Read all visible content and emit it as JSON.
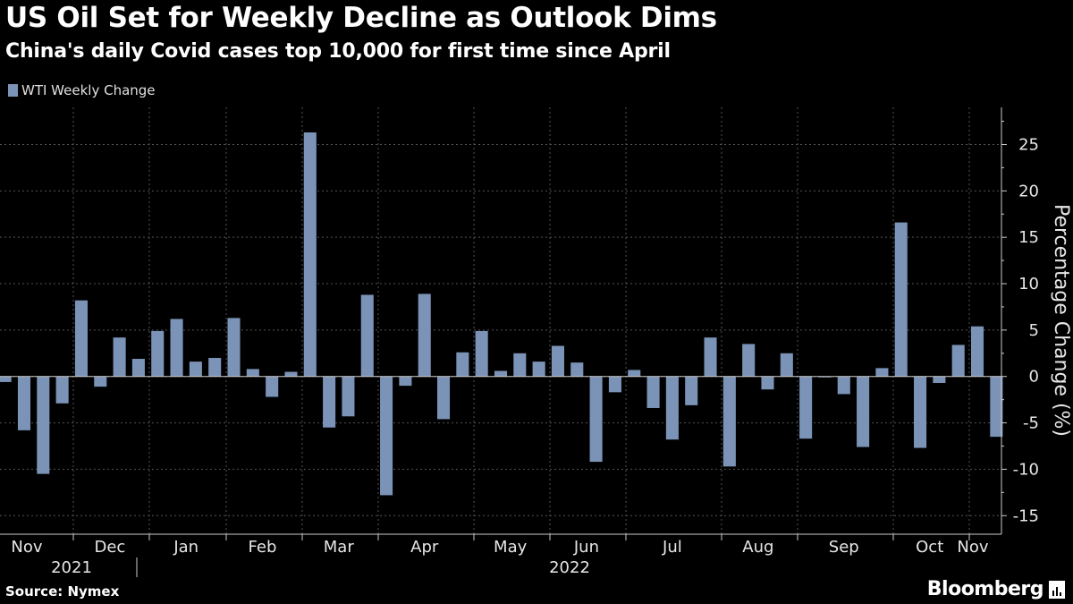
{
  "header": {
    "title": "US Oil Set for Weekly Decline as Outlook Dims",
    "subtitle": "China's daily Covid cases top 10,000 for first time since April"
  },
  "footer": {
    "source": "Source: Nymex",
    "brand": "Bloomberg"
  },
  "colors": {
    "bar": "#7b93b7",
    "grid": "#555555",
    "axis": "#cccccc"
  },
  "chart_data": {
    "type": "bar",
    "title": "US Oil Set for Weekly Decline as Outlook Dims",
    "subtitle": "China's daily Covid cases top 10,000 for first time since April",
    "ylabel": "Percentage Change (%)",
    "ylim": [
      -17,
      29
    ],
    "yticks": [
      -15,
      -10,
      -5,
      0,
      5,
      10,
      15,
      20,
      25
    ],
    "ytick_labels": [
      "-15",
      "-10",
      "-5",
      "0",
      "5",
      "10",
      "15",
      "20",
      "25"
    ],
    "legend": "WTI Weekly Change",
    "legend_position": "top-left",
    "month_labels": [
      "Nov",
      "Dec",
      "Jan",
      "Feb",
      "Mar",
      "Apr",
      "May",
      "Jun",
      "Jul",
      "Aug",
      "Sep",
      "Oct",
      "Nov"
    ],
    "month_start_weeks": [
      0,
      4,
      8,
      12,
      16,
      20,
      25,
      29,
      33,
      38,
      42,
      47,
      51
    ],
    "year_labels": [
      "2021",
      "2022"
    ],
    "values": [
      -0.6,
      -5.8,
      -10.5,
      -2.9,
      8.2,
      -1.1,
      4.2,
      1.9,
      4.9,
      6.2,
      1.6,
      2.0,
      6.3,
      0.8,
      -2.2,
      0.5,
      26.3,
      -5.5,
      -4.3,
      8.8,
      -12.8,
      -1.0,
      8.9,
      -4.6,
      2.6,
      4.9,
      0.6,
      2.5,
      1.6,
      3.3,
      1.5,
      -9.2,
      -1.7,
      0.7,
      -3.4,
      -6.8,
      -3.1,
      4.2,
      -9.7,
      3.5,
      -1.4,
      2.5,
      -6.7,
      -0.1,
      -1.9,
      -7.6,
      0.9,
      16.6,
      -7.7,
      -0.7,
      3.4,
      5.4,
      -6.5
    ]
  }
}
